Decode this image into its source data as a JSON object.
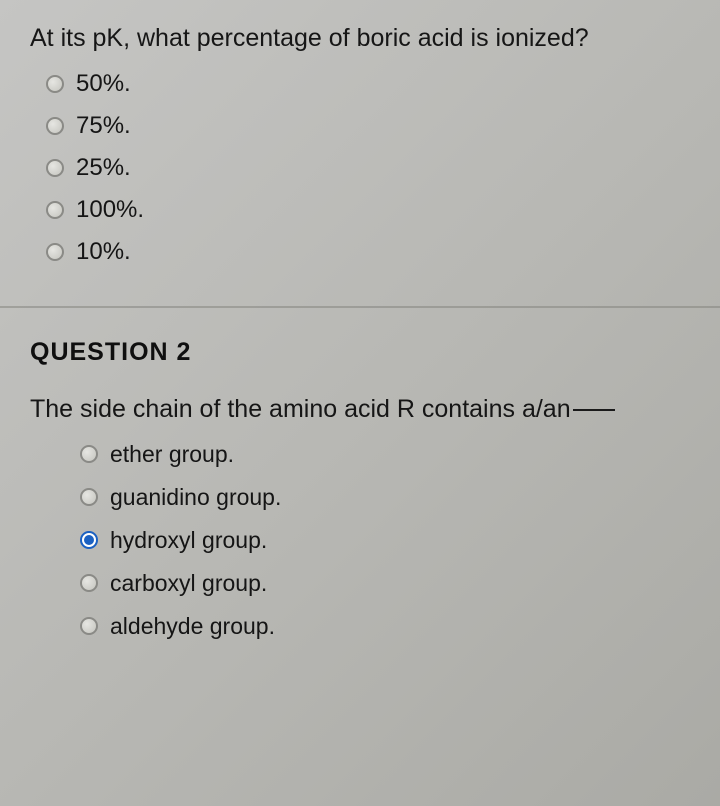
{
  "question1": {
    "text": "At its pK, what percentage of boric acid is ionized?",
    "options": [
      {
        "label": "50%.",
        "selected": false
      },
      {
        "label": "75%.",
        "selected": false
      },
      {
        "label": "25%.",
        "selected": false
      },
      {
        "label": "100%.",
        "selected": false
      },
      {
        "label": "10%.",
        "selected": false
      }
    ]
  },
  "question2": {
    "heading": "QUESTION 2",
    "text_prefix": "The side chain of the amino acid R contains a/an",
    "options": [
      {
        "label": "ether group.",
        "selected": false
      },
      {
        "label": "guanidino group.",
        "selected": false
      },
      {
        "label": "hydroxyl group.",
        "selected": true
      },
      {
        "label": "carboxyl group.",
        "selected": false
      },
      {
        "label": "aldehyde group.",
        "selected": false
      }
    ]
  },
  "colors": {
    "background_top": "#c5c5c3",
    "background_bottom": "#aaaaa5",
    "text": "#1a1a1a",
    "radio_border": "#8a8a86",
    "radio_selected": "#1b61c2",
    "divider": "#7f7f7a"
  }
}
